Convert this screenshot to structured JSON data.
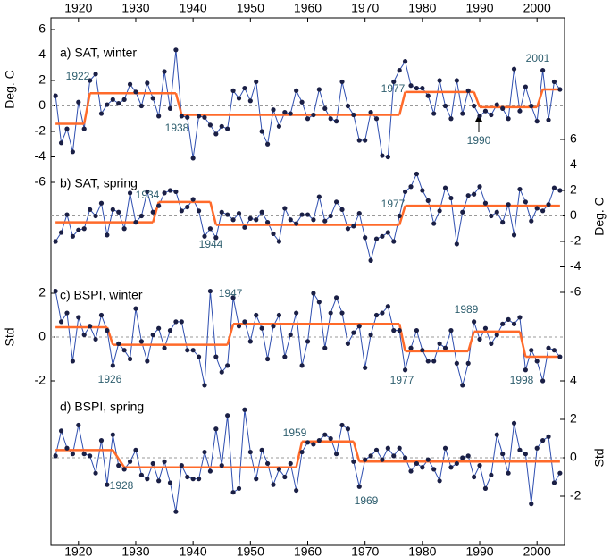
{
  "chart_data": {
    "type": "stacked-panels",
    "xlim": [
      1915.2,
      2004.8
    ],
    "xticks": [
      1920,
      1930,
      1940,
      1950,
      1960,
      1970,
      1980,
      1990,
      2000
    ],
    "x": [
      1916,
      1917,
      1918,
      1919,
      1920,
      1921,
      1922,
      1923,
      1924,
      1925,
      1926,
      1927,
      1928,
      1929,
      1930,
      1931,
      1932,
      1933,
      1934,
      1935,
      1936,
      1937,
      1938,
      1939,
      1940,
      1941,
      1942,
      1943,
      1944,
      1945,
      1946,
      1947,
      1948,
      1949,
      1950,
      1951,
      1952,
      1953,
      1954,
      1955,
      1956,
      1957,
      1958,
      1959,
      1960,
      1961,
      1962,
      1963,
      1964,
      1965,
      1966,
      1967,
      1968,
      1969,
      1970,
      1971,
      1972,
      1973,
      1974,
      1975,
      1976,
      1977,
      1978,
      1979,
      1980,
      1981,
      1982,
      1983,
      1984,
      1985,
      1986,
      1987,
      1988,
      1989,
      1990,
      1991,
      1992,
      1993,
      1994,
      1995,
      1996,
      1997,
      1998,
      1999,
      2000,
      2001,
      2002,
      2003,
      2004
    ],
    "line_color": "#2f4fb0",
    "point_color": "#1a1f45",
    "regime_color": "#ff6a2a",
    "panels": [
      {
        "type": "line",
        "title": "a) SAT, winter",
        "ylabel": "Deg. C",
        "axis_side": "left",
        "ylim": [
          -6,
          6
        ],
        "yticks": [
          6,
          4,
          2,
          0,
          -2,
          -4,
          -6
        ],
        "hline": 0,
        "values": [
          0.8,
          -2.9,
          -1.8,
          -3.6,
          0.3,
          -1.8,
          2.0,
          2.5,
          -0.6,
          0.1,
          0.5,
          0.2,
          0.5,
          1.7,
          1.1,
          0.0,
          1.8,
          0.6,
          -0.8,
          2.7,
          -0.2,
          4.4,
          -0.8,
          -0.9,
          -4.1,
          -0.8,
          -0.9,
          -1.5,
          -2.2,
          -1.6,
          -1.8,
          1.2,
          0.6,
          1.4,
          0.4,
          1.9,
          -2.0,
          -3.0,
          -0.3,
          -1.6,
          -0.5,
          -0.6,
          1.2,
          0.3,
          -1.0,
          -0.7,
          1.3,
          -0.2,
          -1.0,
          -1.2,
          1.9,
          0.0,
          -0.7,
          -2.7,
          -2.7,
          -0.5,
          -1.0,
          -3.9,
          -4.0,
          1.9,
          2.8,
          3.5,
          1.6,
          1.4,
          1.4,
          0.8,
          -0.6,
          2.0,
          0.0,
          -1.0,
          2.0,
          -0.6,
          1.2,
          0.0,
          -0.8,
          -0.4,
          -0.7,
          0.1,
          -0.2,
          -1.0,
          2.9,
          -0.4,
          1.5,
          0.0,
          -1.2,
          2.8,
          -1.1,
          1.9,
          1.3
        ],
        "regimes": [
          {
            "from": 1916,
            "to": 1921,
            "value": -1.4
          },
          {
            "from": 1922,
            "to": 1937,
            "value": 1.0
          },
          {
            "from": 1938,
            "to": 1976,
            "value": -0.7
          },
          {
            "from": 1977,
            "to": 1989,
            "value": 1.1
          },
          {
            "from": 1990,
            "to": 2000,
            "value": -0.1
          },
          {
            "from": 2001,
            "to": 2004,
            "value": 1.3
          }
        ],
        "annotations": [
          "1922",
          "1938",
          "1977",
          "1990",
          "2001"
        ]
      },
      {
        "type": "line",
        "title": "b) SAT, spring",
        "ylabel": "Deg. C",
        "axis_side": "right",
        "ylim": [
          -6,
          6
        ],
        "yticks": [
          6,
          4,
          2,
          0,
          -2,
          -4,
          -6
        ],
        "hline": 0,
        "values": [
          -2.0,
          -1.3,
          0.1,
          -1.6,
          -1.1,
          -1.0,
          0.5,
          0.0,
          1.0,
          -1.5,
          0.5,
          0.3,
          -1.0,
          1.8,
          -0.5,
          0.0,
          1.9,
          0.3,
          0.8,
          1.8,
          2.0,
          1.9,
          0.4,
          0.7,
          1.3,
          0.4,
          -1.6,
          -1.0,
          -1.7,
          0.3,
          0.1,
          -0.3,
          0.2,
          -0.9,
          -0.2,
          -0.3,
          0.3,
          -0.5,
          -1.4,
          -2.0,
          0.6,
          -0.3,
          -0.6,
          0.1,
          0.1,
          -0.3,
          1.5,
          -0.4,
          0.0,
          1.1,
          0.5,
          -1.0,
          -0.8,
          0.2,
          -1.7,
          -3.5,
          -1.8,
          -1.6,
          -1.3,
          -2.0,
          0.0,
          1.9,
          2.3,
          3.3,
          2.0,
          1.2,
          -0.6,
          0.4,
          2.2,
          1.4,
          -2.2,
          0.3,
          1.6,
          1.7,
          2.3,
          1.0,
          0.0,
          0.3,
          -0.5,
          0.9,
          -1.5,
          2.1,
          1.1,
          -0.4,
          0.6,
          0.4,
          0.9,
          2.2,
          2.0
        ],
        "regimes": [
          {
            "from": 1916,
            "to": 1933,
            "value": -0.5
          },
          {
            "from": 1934,
            "to": 1943,
            "value": 1.1
          },
          {
            "from": 1944,
            "to": 1976,
            "value": -0.7
          },
          {
            "from": 1977,
            "to": 2004,
            "value": 0.8
          }
        ],
        "annotations": [
          "1934",
          "1944",
          "1977"
        ]
      },
      {
        "type": "line",
        "title": "c) BSPI, winter",
        "ylabel": "Std",
        "axis_side": "left",
        "ylim": [
          -2,
          2
        ],
        "yticks": [
          2,
          0,
          -2
        ],
        "hline": 0,
        "values": [
          2.1,
          0.7,
          1.1,
          -1.1,
          0.9,
          0.1,
          0.5,
          -0.1,
          1.0,
          0.3,
          -1.3,
          -0.3,
          -0.6,
          -1.0,
          1.3,
          -0.2,
          -1.1,
          0.1,
          0.4,
          -0.5,
          0.3,
          0.7,
          0.7,
          -0.6,
          -0.6,
          -0.9,
          -2.2,
          2.1,
          -0.9,
          -1.6,
          -1.3,
          1.8,
          0.5,
          0.7,
          -0.2,
          1.0,
          0.4,
          -1.0,
          0.5,
          1.0,
          -0.9,
          0.1,
          1.1,
          -1.3,
          -0.2,
          2.0,
          1.6,
          -0.5,
          1.1,
          1.8,
          1.1,
          -0.3,
          0.2,
          0.5,
          -1.4,
          0.1,
          1.0,
          1.1,
          1.4,
          0.3,
          0.3,
          -1.5,
          -0.5,
          0.3,
          -0.6,
          -1.1,
          -1.1,
          -0.3,
          -0.5,
          0.3,
          -1.2,
          -2.2,
          -1.2,
          0.7,
          -0.1,
          0.4,
          -0.3,
          0.1,
          0.6,
          0.8,
          0.6,
          0.9,
          -1.5,
          -0.6,
          -1.1,
          -2.0,
          -0.5,
          -0.6,
          -0.9
        ],
        "regimes": [
          {
            "from": 1916,
            "to": 1925,
            "value": 0.45
          },
          {
            "from": 1926,
            "to": 1946,
            "value": -0.35
          },
          {
            "from": 1947,
            "to": 1976,
            "value": 0.6
          },
          {
            "from": 1977,
            "to": 1988,
            "value": -0.65
          },
          {
            "from": 1989,
            "to": 1997,
            "value": 0.25
          },
          {
            "from": 1998,
            "to": 2004,
            "value": -0.9
          }
        ],
        "annotations": [
          "1926",
          "1947",
          "1977",
          "1989",
          "1998"
        ]
      },
      {
        "type": "line",
        "title": "d) BSPI, spring",
        "ylabel": "Std",
        "axis_side": "right",
        "ylim": [
          -2,
          4
        ],
        "yticks": [
          4,
          2,
          0,
          -2
        ],
        "hline": 0,
        "values": [
          0.1,
          1.4,
          0.5,
          0.2,
          1.7,
          0.2,
          0.1,
          -0.8,
          0.9,
          -1.4,
          1.2,
          -0.4,
          -0.6,
          -0.2,
          0.4,
          -0.9,
          -1.1,
          -0.3,
          -1.2,
          -0.2,
          -1.3,
          -2.8,
          -0.4,
          -1.0,
          -1.1,
          -1.1,
          0.3,
          -0.7,
          1.5,
          -0.4,
          2.2,
          -1.8,
          -1.6,
          2.5,
          0.3,
          -1.1,
          0.4,
          -0.3,
          -1.4,
          -0.6,
          -1.0,
          -0.3,
          -1.7,
          0.3,
          0.8,
          0.7,
          0.9,
          1.2,
          1.0,
          0.2,
          1.7,
          1.5,
          -0.2,
          -1.5,
          -0.1,
          0.1,
          0.4,
          -0.1,
          0.5,
          0.1,
          0.5,
          0.0,
          -0.7,
          -0.3,
          -0.5,
          -0.1,
          -0.6,
          -1.2,
          0.5,
          -0.5,
          -0.3,
          0.0,
          0.1,
          -1.0,
          -0.4,
          -1.6,
          -0.9,
          1.2,
          0.2,
          -0.8,
          1.8,
          0.4,
          0.2,
          -2.4,
          0.5,
          0.9,
          1.1,
          -1.3,
          -0.8
        ],
        "regimes": [
          {
            "from": 1916,
            "to": 1926,
            "value": 0.4
          },
          {
            "from": 1928,
            "to": 1958,
            "value": -0.5
          },
          {
            "from": 1959,
            "to": 1968,
            "value": 0.85
          },
          {
            "from": 1969,
            "to": 2004,
            "value": -0.2
          }
        ],
        "annotations": [
          "1928",
          "1959",
          "1969"
        ]
      }
    ]
  }
}
